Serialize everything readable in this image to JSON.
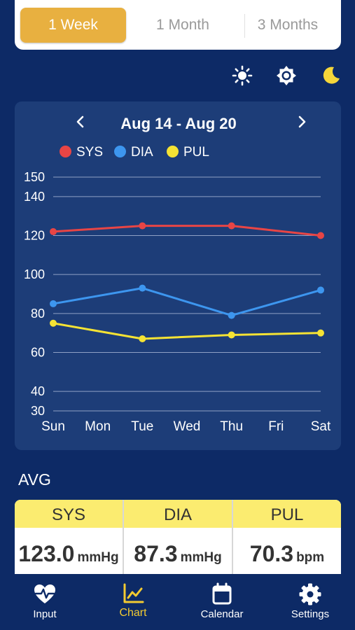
{
  "range_tabs": [
    {
      "label": "1 Week",
      "active": true
    },
    {
      "label": "1 Month",
      "active": false
    },
    {
      "label": "3 Months",
      "active": false
    }
  ],
  "theme_icons": [
    "sun-icon",
    "brightness-icon",
    "moon-icon"
  ],
  "colors": {
    "background": "#0d2a66",
    "card": "#1d3d78",
    "accent": "#e8b040",
    "sys": "#e84545",
    "dia": "#3d96ef",
    "pul": "#f5e334",
    "avg_header": "#fbec70",
    "nav_active": "#f3cb31"
  },
  "chart": {
    "prev_icon": "chevron-left-icon",
    "next_icon": "chevron-right-icon",
    "date_range": "Aug 14 - Aug 20"
  },
  "chart_data": {
    "type": "line",
    "categories": [
      "Sun",
      "Mon",
      "Tue",
      "Wed",
      "Thu",
      "Fri",
      "Sat"
    ],
    "y_ticks": [
      30,
      40,
      60,
      80,
      100,
      120,
      140,
      150
    ],
    "ylim": [
      30,
      150
    ],
    "grid": true,
    "legend_position": "top-left",
    "series": [
      {
        "name": "SYS",
        "color": "#e84545",
        "values": [
          122,
          null,
          125,
          null,
          125,
          null,
          120
        ]
      },
      {
        "name": "DIA",
        "color": "#3d96ef",
        "values": [
          85,
          null,
          93,
          null,
          79,
          null,
          92
        ]
      },
      {
        "name": "PUL",
        "color": "#f5e334",
        "values": [
          75,
          null,
          67,
          null,
          69,
          null,
          70
        ]
      }
    ]
  },
  "avg": {
    "title": "AVG",
    "columns": [
      {
        "label": "SYS",
        "value": "123.0",
        "unit": "mmHg"
      },
      {
        "label": "DIA",
        "value": "87.3",
        "unit": "mmHg"
      },
      {
        "label": "PUL",
        "value": "70.3",
        "unit": "bpm"
      }
    ]
  },
  "nav": [
    {
      "label": "Input",
      "icon": "heart-pulse-icon",
      "active": false
    },
    {
      "label": "Chart",
      "icon": "line-chart-icon",
      "active": true
    },
    {
      "label": "Calendar",
      "icon": "calendar-icon",
      "active": false
    },
    {
      "label": "Settings",
      "icon": "gear-icon",
      "active": false
    }
  ]
}
